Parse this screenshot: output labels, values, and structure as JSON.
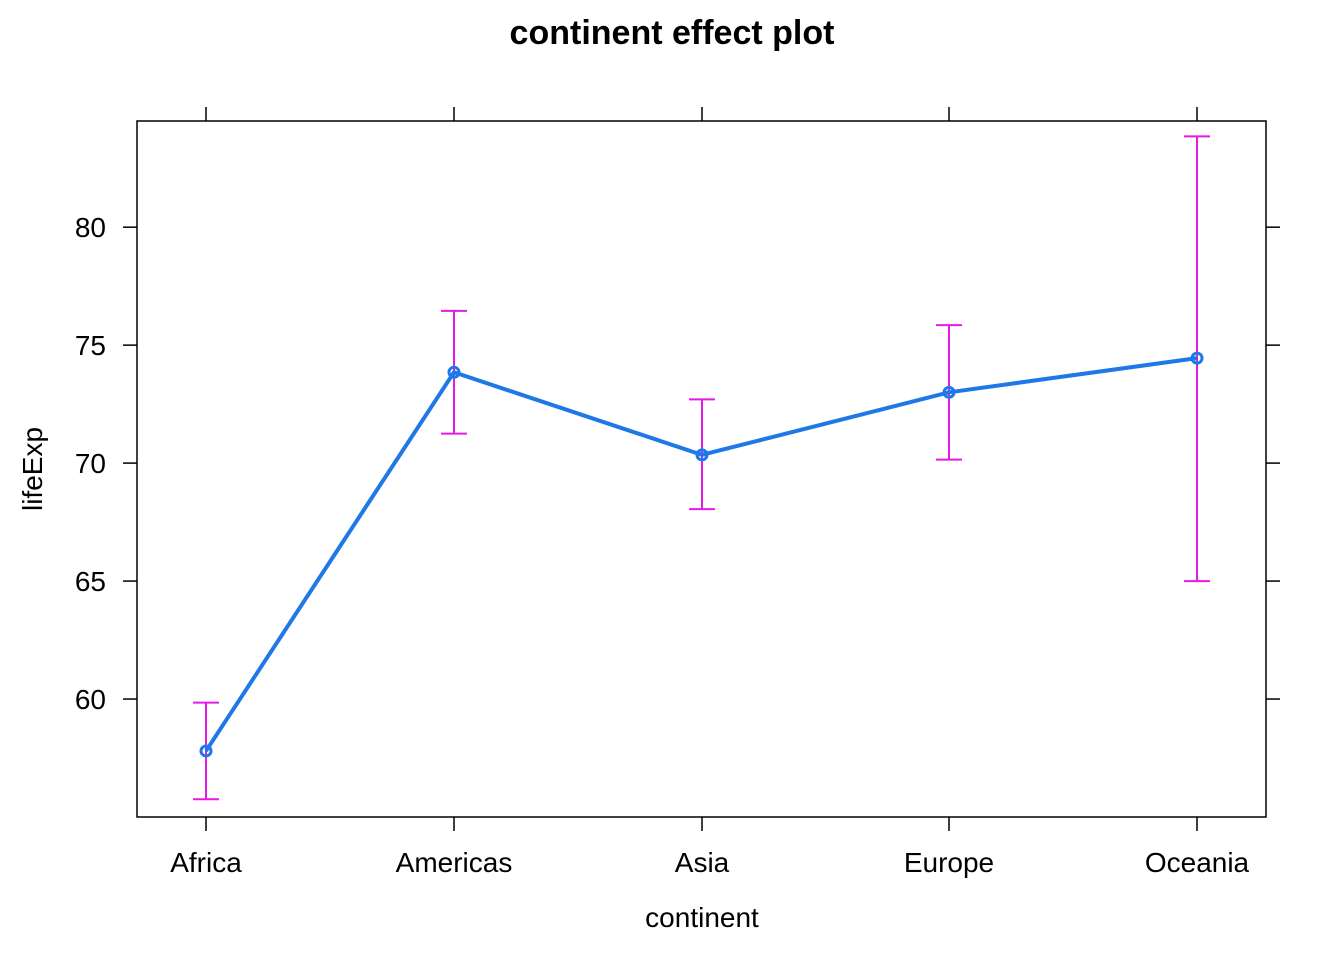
{
  "chart_data": {
    "type": "line",
    "title": "continent effect plot",
    "xlabel": "continent",
    "ylabel": "lifeExp",
    "categories": [
      "Africa",
      "Americas",
      "Asia",
      "Europe",
      "Oceania"
    ],
    "ylim": [
      55.0,
      84.5
    ],
    "yticks": [
      60,
      65,
      70,
      75,
      80
    ],
    "series": [
      {
        "values": [
          57.8,
          73.85,
          70.35,
          73.0,
          74.45
        ],
        "lower": [
          55.75,
          71.25,
          68.05,
          70.15,
          65.0
        ],
        "upper": [
          59.85,
          76.45,
          72.7,
          75.85,
          83.85
        ],
        "color": "#1f78e8",
        "error_color": "#e619e6"
      }
    ],
    "grid": false,
    "legend": "none"
  }
}
